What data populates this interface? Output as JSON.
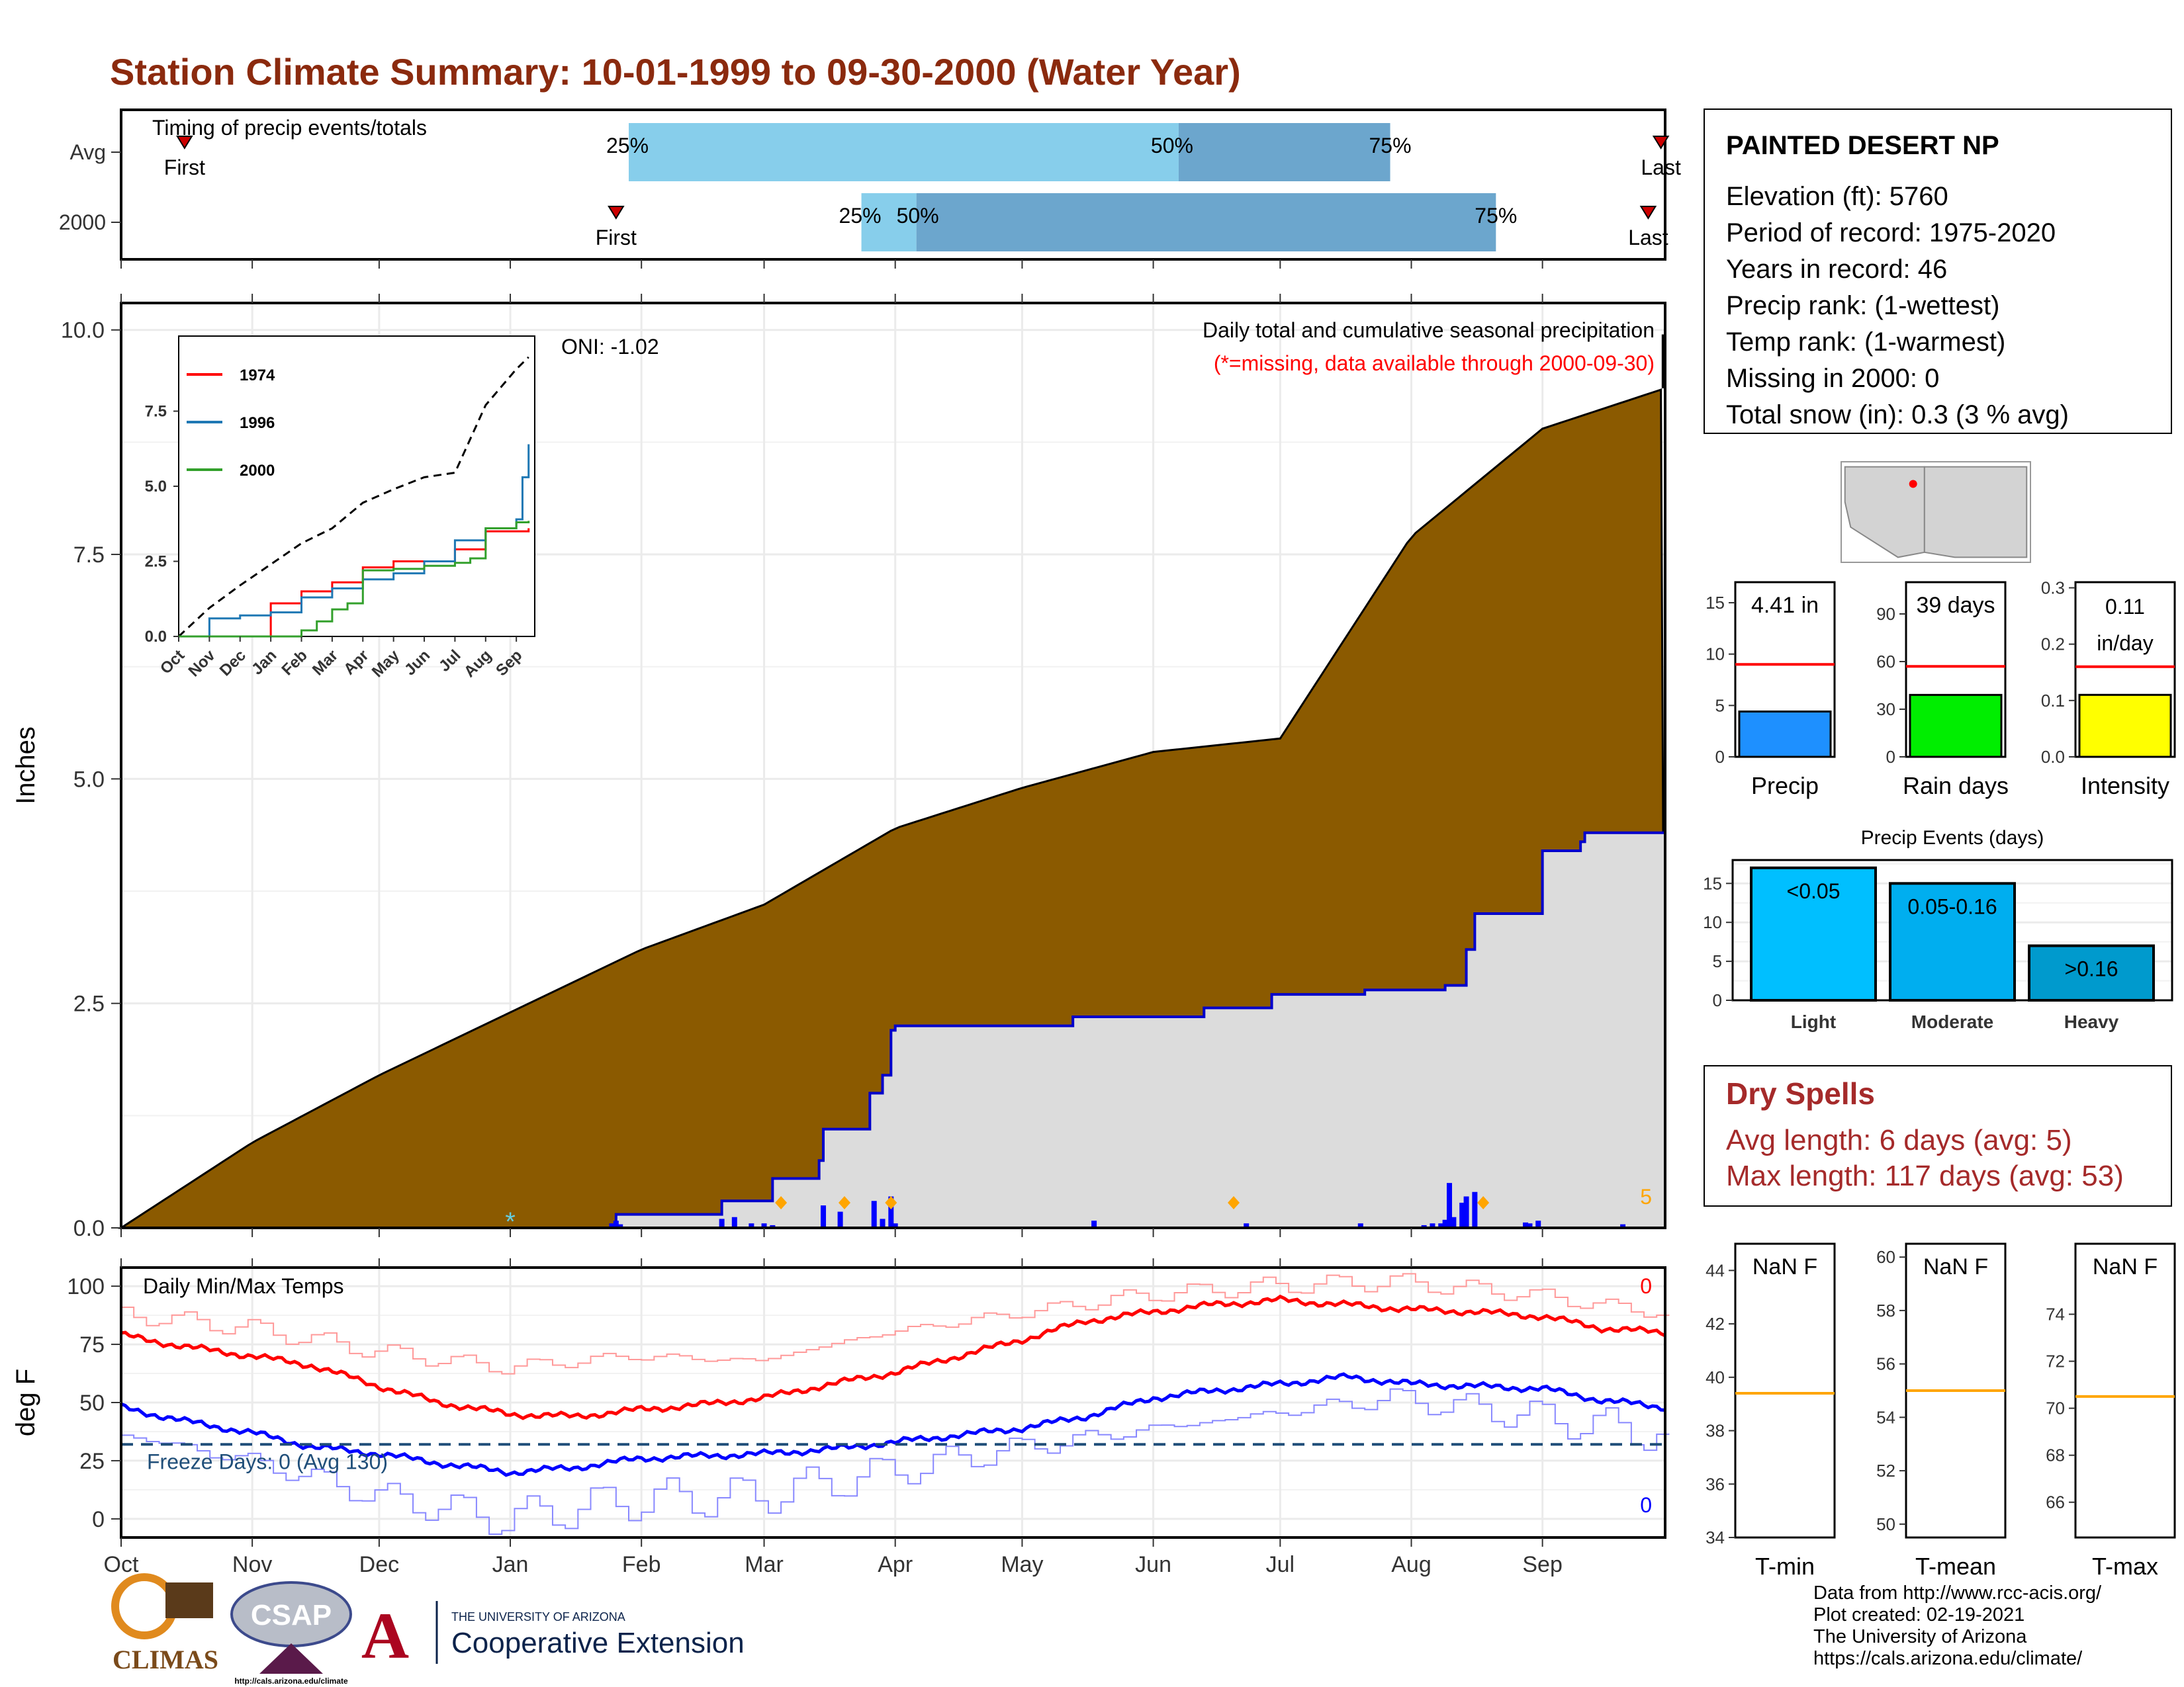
{
  "title": "Station Climate Summary: 10-01-1999 to 09-30-2000 (Water Year)",
  "station": {
    "name": "PAINTED DESERT NP",
    "lines": [
      "Elevation (ft): 5760",
      "Period of record: 1975-2020",
      "Years in record: 46",
      "Precip rank:  (1-wettest)",
      "Temp rank:  (1-warmest)",
      "Missing in 2000: 0",
      "Total snow (in): 0.3 (3 % avg)"
    ]
  },
  "dry_spells": {
    "title": "Dry Spells",
    "avg": "Avg length: 6 days (avg: 5)",
    "max": "Max length: 117 days (avg: 53)"
  },
  "credits": {
    "lines": [
      "Data from http://www.rcc-acis.org/",
      "Plot created: 02-19-2021",
      "The University of Arizona",
      "https://cals.arizona.edu/climate/"
    ],
    "logos": {
      "climas": "CLIMAS",
      "csap": "CSAP",
      "csap_url": "http://cals.arizona.edu/climate",
      "ua_small": "THE UNIVERSITY OF ARIZONA",
      "ua_big": "Cooperative Extension"
    }
  },
  "colors": {
    "title": "#8B2A0E",
    "cum_fill": "#8B5A00",
    "current_fill": "#DCDCDC",
    "current_line": "#0000CC",
    "bar_light": "#87CEEB",
    "bar_dark": "#6CA6CD",
    "tmax": "#FF0000",
    "tmin": "#0000FF"
  },
  "chart_data": [
    {
      "id": "timing",
      "type": "bar",
      "subtitle": "Timing of precip events/totals",
      "rows": [
        "Avg",
        "2000"
      ],
      "x_axis_months": [
        "Oct",
        "Nov",
        "Dec",
        "Jan",
        "Feb",
        "Mar",
        "Apr",
        "May",
        "Jun",
        "Jul",
        "Aug",
        "Sep"
      ],
      "bars": [
        {
          "row": "Avg",
          "p25": 120,
          "p50": 250,
          "p75": 300,
          "first": 15,
          "last": 364
        },
        {
          "row": "2000",
          "p25": 175,
          "p50": 188,
          "p75": 325,
          "first": 117,
          "last": 361
        }
      ],
      "percent_labels": [
        "25%",
        "50%",
        "75%"
      ],
      "marker_labels": {
        "first": "First",
        "last": "Last"
      }
    },
    {
      "id": "precip",
      "type": "area",
      "ylabel": "Inches",
      "annotation_right": "Daily total and cumulative seasonal precipitation",
      "annotation_missing": "(*=missing, data available through 2000-09-30)",
      "oni": "ONI: -1.02",
      "snow_count": "5",
      "ylim": [
        0,
        10.3
      ],
      "yticks": [
        0.0,
        2.5,
        5.0,
        7.5,
        10.0
      ],
      "ytick_labels": [
        "0.0",
        "2.5",
        "5.0",
        "7.5",
        "10.0"
      ],
      "x_axis_months": [
        "Oct",
        "Nov",
        "Dec",
        "Jan",
        "Feb",
        "Mar",
        "Apr",
        "May",
        "Jun",
        "Jul",
        "Aug",
        "Sep"
      ],
      "avg_cumulative": {
        "days": [
          0,
          31,
          61,
          92,
          123,
          152,
          183,
          213,
          244,
          274,
          305,
          336,
          365
        ],
        "values": [
          0.0,
          0.95,
          1.7,
          2.4,
          3.1,
          3.6,
          4.45,
          4.9,
          5.3,
          5.45,
          7.7,
          8.9,
          9.35
        ]
      },
      "current_cumulative": {
        "days": [
          0,
          114,
          117,
          140,
          142,
          152,
          154,
          165,
          166,
          176,
          177,
          180,
          182,
          183,
          224,
          225,
          255,
          256,
          272,
          294,
          305,
          313,
          317,
          318,
          320,
          335,
          336,
          345,
          346,
          365
        ],
        "values": [
          0.0,
          0.0,
          0.15,
          0.15,
          0.3,
          0.3,
          0.55,
          0.75,
          1.1,
          1.1,
          1.5,
          1.7,
          2.2,
          2.25,
          2.25,
          2.35,
          2.35,
          2.45,
          2.6,
          2.65,
          2.65,
          2.7,
          2.7,
          3.1,
          3.5,
          3.5,
          4.2,
          4.3,
          4.4,
          4.42
        ]
      },
      "daily_bars": {
        "days": [
          116,
          117,
          118,
          142,
          145,
          149,
          152,
          154,
          166,
          170,
          178,
          180,
          182,
          183,
          230,
          266,
          293,
          308,
          310,
          312,
          313,
          314,
          315,
          317,
          318,
          320,
          332,
          333,
          335,
          355
        ],
        "values": [
          0.05,
          0.08,
          0.04,
          0.1,
          0.12,
          0.05,
          0.05,
          0.03,
          0.25,
          0.18,
          0.3,
          0.1,
          0.35,
          0.05,
          0.08,
          0.05,
          0.05,
          0.03,
          0.05,
          0.05,
          0.09,
          0.5,
          0.12,
          0.28,
          0.35,
          0.4,
          0.06,
          0.05,
          0.08,
          0.04
        ]
      },
      "event_markers_days": [
        156,
        171,
        182,
        263,
        322
      ],
      "snow_marker_day": 92
    },
    {
      "id": "inset",
      "type": "line",
      "series": [
        {
          "name": "1974",
          "color": "#FF0000",
          "x": [
            0,
            2.9,
            3,
            4,
            5,
            6,
            7,
            8,
            9,
            10,
            11.4
          ],
          "y": [
            0,
            0,
            1.1,
            1.5,
            1.8,
            2.3,
            2.5,
            2.5,
            2.9,
            3.5,
            3.6
          ]
        },
        {
          "name": "1996",
          "color": "#1F78B4",
          "x": [
            0,
            1,
            2,
            3,
            4,
            5,
            6,
            7,
            8,
            9,
            10,
            11,
            11.2,
            11.4
          ],
          "y": [
            0,
            0.6,
            0.7,
            0.8,
            1.3,
            1.6,
            1.9,
            2.1,
            2.5,
            3.2,
            3.6,
            3.9,
            5.3,
            6.4
          ]
        },
        {
          "name": "2000",
          "color": "#33A02C",
          "x": [
            0,
            3.5,
            4,
            4.5,
            5,
            5.5,
            6,
            7,
            8,
            9,
            9.5,
            10,
            11,
            11.4
          ],
          "y": [
            0,
            0,
            0.2,
            0.5,
            0.9,
            1.1,
            2.2,
            2.25,
            2.35,
            2.45,
            2.6,
            3.6,
            3.8,
            3.85
          ]
        }
      ],
      "avg_dashed": {
        "x": [
          0,
          1,
          2,
          3,
          4,
          5,
          6,
          7,
          8,
          9,
          10,
          11,
          11.4
        ],
        "y": [
          0,
          0.95,
          1.7,
          2.4,
          3.1,
          3.6,
          4.45,
          4.9,
          5.3,
          5.45,
          7.7,
          8.9,
          9.3
        ]
      },
      "yticks": [
        "0.0",
        "2.5",
        "5.0",
        "7.5"
      ],
      "xticks": [
        "Oct",
        "Nov",
        "Dec",
        "Jan",
        "Feb",
        "Mar",
        "Apr",
        "May",
        "Jun",
        "Jul",
        "Aug",
        "Sep"
      ]
    },
    {
      "id": "temps",
      "type": "line",
      "subtitle": "Daily Min/Max Temps",
      "ylabel": "deg F",
      "freeze_label": "Freeze Days: 0 (Avg 130)",
      "freeze_line": 32,
      "max_count": "0",
      "min_count": "0",
      "yticks": [
        "0",
        "25",
        "50",
        "75",
        "100"
      ],
      "ylim": [
        -8,
        108
      ],
      "x_axis_months": [
        "Oct",
        "Nov",
        "Dec",
        "Jan",
        "Feb",
        "Mar",
        "Apr",
        "May",
        "Jun",
        "Jul",
        "Aug",
        "Sep"
      ],
      "avg_max": {
        "days": [
          0,
          15,
          31,
          45,
          61,
          75,
          92,
          107,
          123,
          137,
          152,
          168,
          183,
          198,
          213,
          228,
          244,
          258,
          274,
          290,
          305,
          320,
          336,
          350,
          365
        ],
        "values": [
          79,
          74,
          70,
          66,
          57,
          50,
          45,
          44,
          47,
          49,
          52,
          58,
          63,
          70,
          77,
          85,
          89,
          92,
          94,
          92,
          90,
          89,
          87,
          82,
          80
        ]
      },
      "avg_min": {
        "days": [
          0,
          15,
          31,
          45,
          61,
          75,
          92,
          107,
          123,
          137,
          152,
          168,
          183,
          198,
          213,
          228,
          244,
          258,
          274,
          290,
          305,
          320,
          336,
          350,
          365
        ],
        "values": [
          48,
          42,
          37,
          31,
          28,
          24,
          20,
          22,
          26,
          27,
          28,
          30,
          33,
          36,
          39,
          44,
          52,
          55,
          58,
          61,
          58,
          57,
          56,
          51,
          48
        ]
      },
      "rec_max": {
        "days": [
          0,
          30,
          60,
          90,
          120,
          150,
          180,
          210,
          240,
          270,
          300,
          330,
          365
        ],
        "values": [
          88,
          82,
          72,
          65,
          70,
          68,
          80,
          88,
          96,
          100,
          102,
          97,
          88
        ]
      },
      "rec_min": {
        "days": [
          0,
          30,
          60,
          90,
          120,
          150,
          180,
          210,
          240,
          270,
          300,
          330,
          365
        ],
        "values": [
          36,
          25,
          10,
          0,
          8,
          10,
          20,
          30,
          38,
          45,
          52,
          45,
          36
        ]
      }
    },
    {
      "id": "mini_precip",
      "type": "bar",
      "value_label": "4.41 in",
      "xlabel": "Precip",
      "value": 4.41,
      "avg": 9.0,
      "ylim": [
        0,
        17
      ],
      "yticks": [
        "0",
        "5",
        "10",
        "15"
      ],
      "color": "#1E90FF"
    },
    {
      "id": "mini_raindays",
      "type": "bar",
      "value_label": "39 days",
      "xlabel": "Rain days",
      "value": 39,
      "avg": 57,
      "ylim": [
        0,
        110
      ],
      "yticks": [
        "0",
        "30",
        "60",
        "90"
      ],
      "color": "#00EE00"
    },
    {
      "id": "mini_intensity",
      "type": "bar",
      "value_label_1": "0.11",
      "value_label_2": "in/day",
      "xlabel": "Intensity",
      "value": 0.11,
      "avg": 0.16,
      "ylim": [
        0,
        0.31
      ],
      "yticks": [
        "0.0",
        "0.1",
        "0.2",
        "0.3"
      ],
      "color": "#FFFF00"
    },
    {
      "id": "events",
      "type": "bar",
      "title": "Precip Events (days)",
      "categories": [
        "Light",
        "Moderate",
        "Heavy"
      ],
      "values": [
        17,
        15,
        7
      ],
      "value_labels": [
        "<0.05",
        "0.05-0.16",
        ">0.16"
      ],
      "colors": [
        "#00BFFF",
        "#00AEEF",
        "#009ACD"
      ],
      "ylim": [
        0,
        18
      ],
      "yticks": [
        "0",
        "5",
        "10",
        "15"
      ]
    },
    {
      "id": "tmin",
      "type": "bar",
      "value_label": "NaN F",
      "xlabel": "T-min",
      "avg": 39.4,
      "ylim": [
        34,
        45
      ],
      "yticks": [
        "34",
        "36",
        "38",
        "40",
        "42",
        "44"
      ]
    },
    {
      "id": "tmean",
      "type": "bar",
      "value_label": "NaN F",
      "xlabel": "T-mean",
      "avg": 55.0,
      "ylim": [
        49.5,
        60.5
      ],
      "yticks": [
        "50",
        "52",
        "54",
        "56",
        "58",
        "60"
      ]
    },
    {
      "id": "tmax",
      "type": "bar",
      "value_label": "NaN F",
      "xlabel": "T-max",
      "avg": 70.5,
      "ylim": [
        64.5,
        77
      ],
      "yticks": [
        "66",
        "68",
        "70",
        "72",
        "74"
      ]
    }
  ]
}
